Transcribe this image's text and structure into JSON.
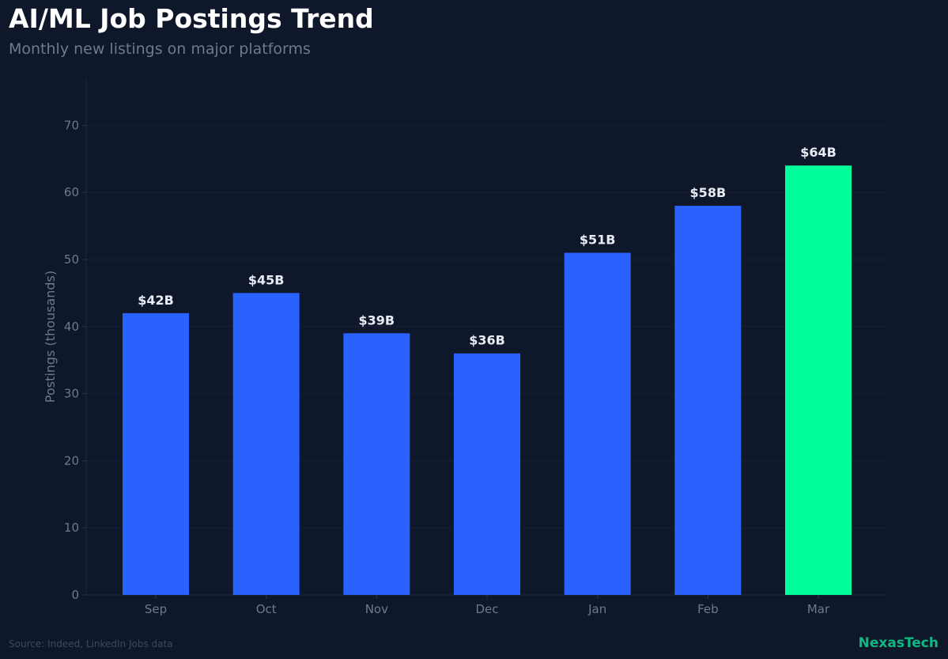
{
  "header": {
    "title": "AI/ML Job Postings Trend",
    "subtitle": "Monthly new listings on major platforms"
  },
  "footer": {
    "source": "Source: Indeed, LinkedIn Jobs data",
    "brand": "NexasTech"
  },
  "colors": {
    "background": "#0f172a",
    "bar": "#2962ff",
    "highlight": "#00ff9c",
    "brand": "#10b981"
  },
  "chart_data": {
    "type": "bar",
    "title": "AI/ML Job Postings Trend",
    "subtitle": "Monthly new listings on major platforms",
    "categories": [
      "Sep",
      "Oct",
      "Nov",
      "Dec",
      "Jan",
      "Feb",
      "Mar"
    ],
    "values": [
      42,
      45,
      39,
      36,
      51,
      58,
      64
    ],
    "data_labels": [
      "$42B",
      "$45B",
      "$39B",
      "$36B",
      "$51B",
      "$58B",
      "$64B"
    ],
    "highlight_index": 6,
    "xlabel": "",
    "ylabel": "Postings (thousands)",
    "ylim": [
      0,
      77
    ],
    "yticks": [
      0,
      10,
      20,
      30,
      40,
      50,
      60,
      70
    ],
    "grid": true
  }
}
